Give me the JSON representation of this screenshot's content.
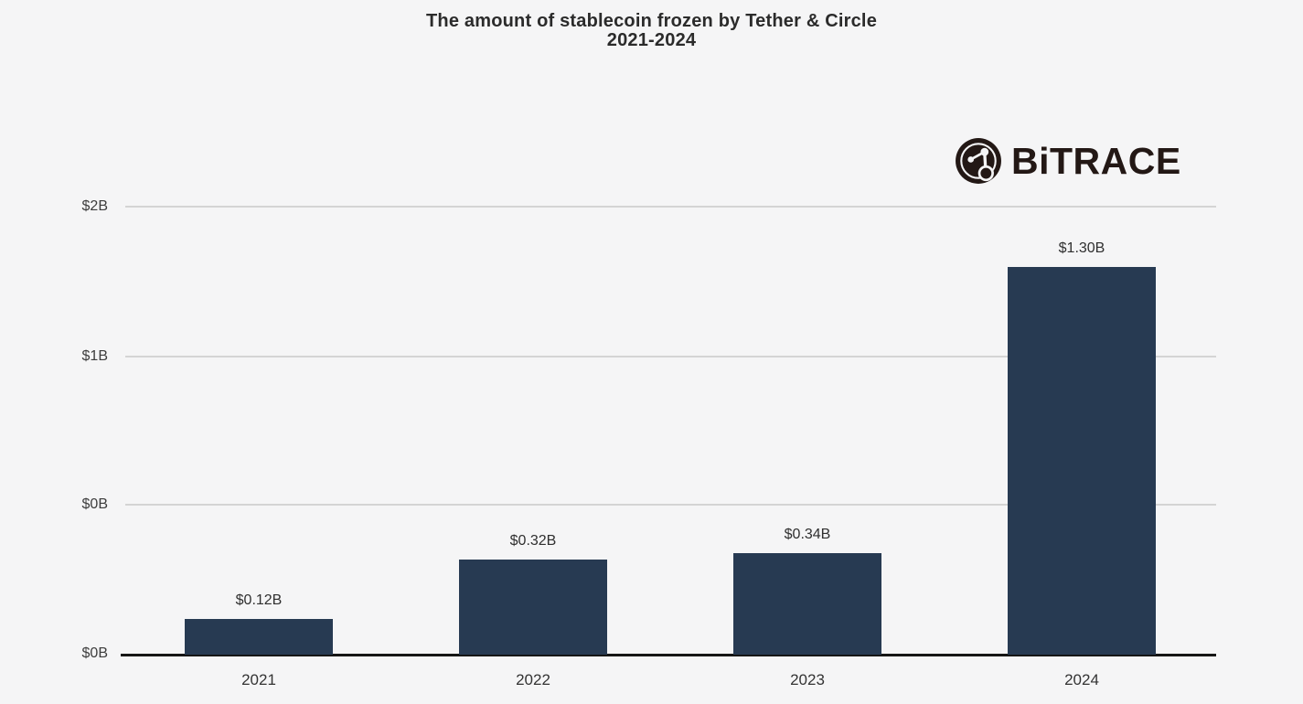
{
  "page": {
    "background_color": "#f5f5f6"
  },
  "title": {
    "line1": "The amount of stablecoin frozen by Tether & Circle",
    "line2": "2021-2024"
  },
  "branding": {
    "logo_text": "BiTRACE",
    "logo_icon": "bitrace-network-icon",
    "logo_color": "#231815"
  },
  "chart_data": {
    "type": "bar",
    "title": "The amount of stablecoin frozen by Tether & Circle",
    "subtitle": "2021-2024",
    "categories": [
      "2021",
      "2022",
      "2023",
      "2024"
    ],
    "values": [
      0.12,
      0.32,
      0.34,
      1.3
    ],
    "value_labels": [
      "$0.12B",
      "$0.32B",
      "$0.34B",
      "$1.30B"
    ],
    "y_tick_labels": [
      "$2B",
      "$1B",
      "$0B",
      "$0B"
    ],
    "ylim": [
      0,
      2
    ],
    "unit": "USD billions",
    "bar_color": "#273a52",
    "gridline_color": "#d4d4d4",
    "axis_line_color": "#161616",
    "grid": true,
    "legend": "none"
  }
}
